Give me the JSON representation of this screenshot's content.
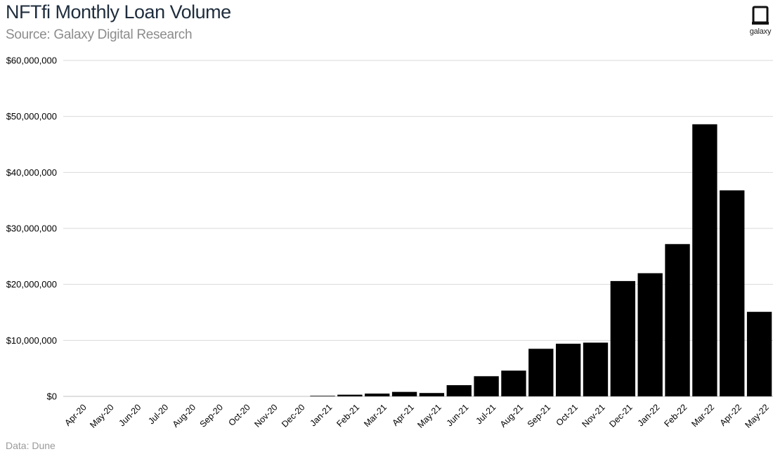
{
  "header": {
    "title": "NFTfi Monthly Loan Volume",
    "subtitle": "Source: Galaxy Digital Research"
  },
  "logo": {
    "text": "galaxy",
    "icon": "galaxy-logo-icon"
  },
  "footer": {
    "note": "Data: Dune"
  },
  "colors": {
    "bar": "#000000",
    "grid": "#d9d9d9",
    "title": "#1f2d3d",
    "subtitle": "#8c8c8c"
  },
  "chart_data": {
    "type": "bar",
    "title": "NFTfi Monthly Loan Volume",
    "subtitle": "Source: Galaxy Digital Research",
    "xlabel": "",
    "ylabel": "",
    "ylim": [
      0,
      60000000
    ],
    "yticks": [
      0,
      10000000,
      20000000,
      30000000,
      40000000,
      50000000,
      60000000
    ],
    "ytick_labels": [
      "$0",
      "$10,000,000",
      "$20,000,000",
      "$30,000,000",
      "$40,000,000",
      "$50,000,000",
      "$60,000,000"
    ],
    "grid": true,
    "legend": "none",
    "categories": [
      "Apr-20",
      "May-20",
      "Jun-20",
      "Jul-20",
      "Aug-20",
      "Sep-20",
      "Oct-20",
      "Nov-20",
      "Dec-20",
      "Jan-21",
      "Feb-21",
      "Mar-21",
      "Apr-21",
      "May-21",
      "Jun-21",
      "Jul-21",
      "Aug-21",
      "Sep-21",
      "Oct-21",
      "Nov-21",
      "Dec-21",
      "Jan-22",
      "Feb-22",
      "Mar-22",
      "Apr-22",
      "May-22"
    ],
    "values": [
      0,
      0,
      0,
      0,
      0,
      0,
      0,
      0,
      0,
      100000,
      300000,
      500000,
      800000,
      600000,
      2000000,
      3600000,
      4600000,
      8500000,
      9400000,
      9600000,
      20600000,
      22000000,
      27200000,
      48600000,
      36800000,
      15100000
    ]
  }
}
